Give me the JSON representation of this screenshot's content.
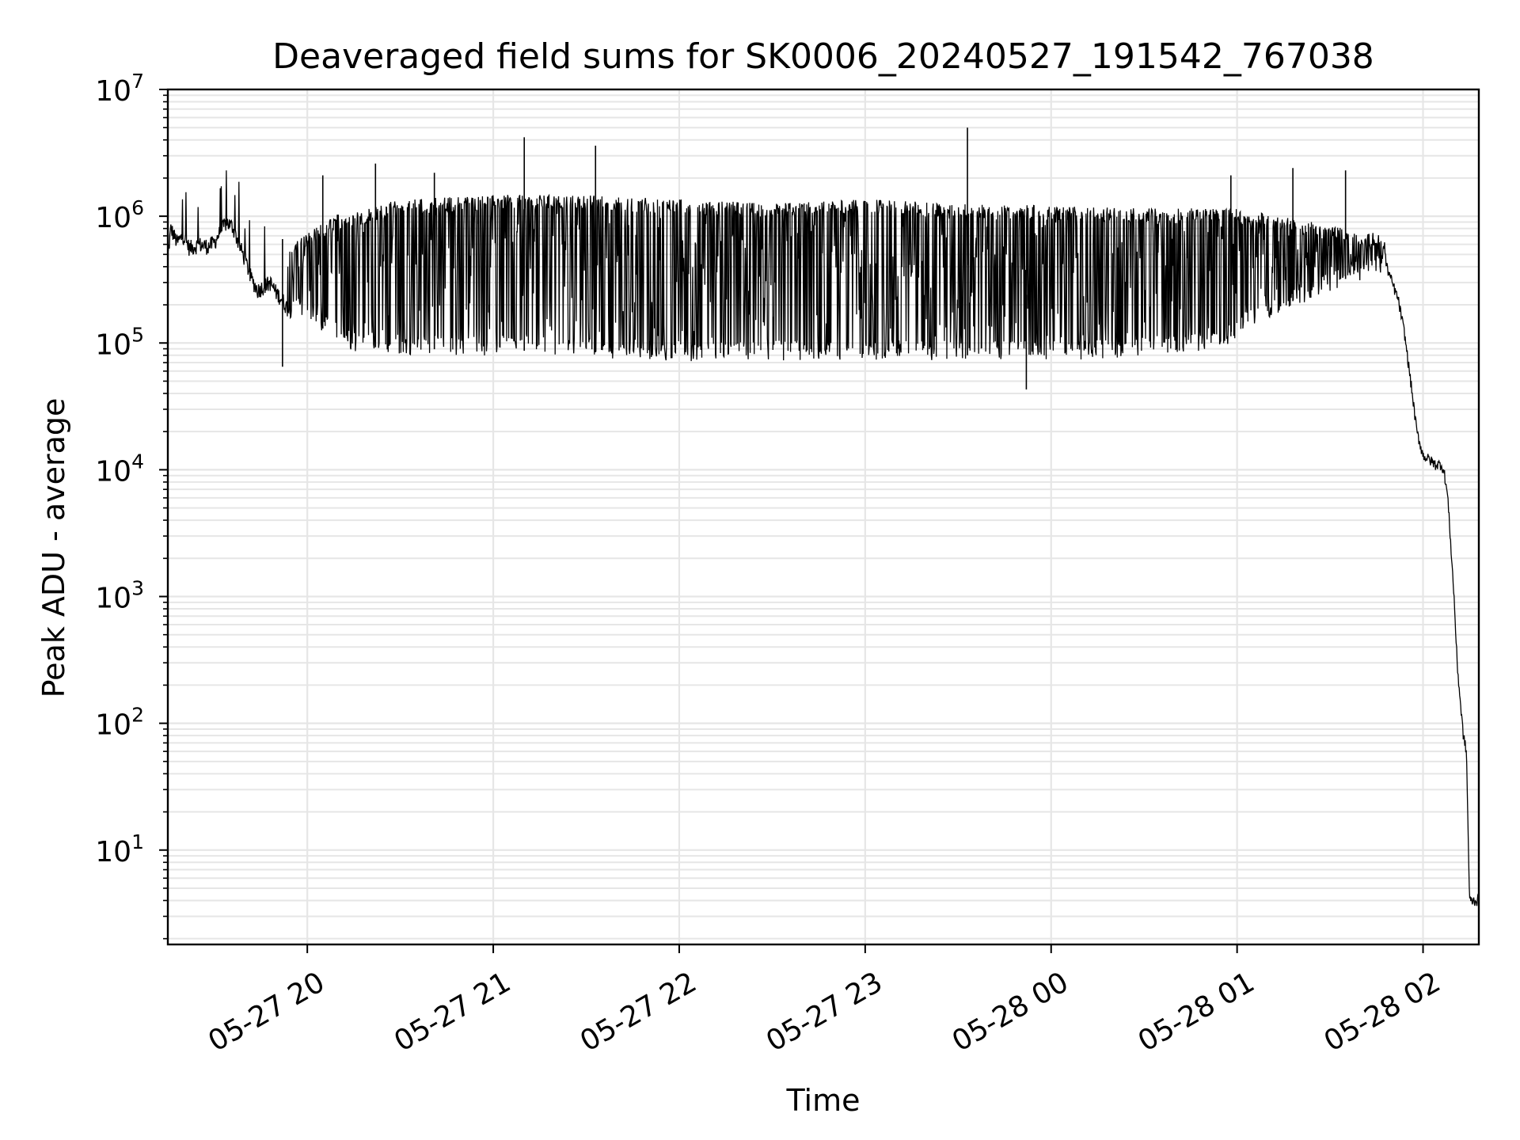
{
  "chart_data": {
    "type": "line",
    "title": "Deaveraged field sums for SK0006_20240527_191542_767038",
    "xlabel": "Time",
    "ylabel": "Peak ADU - average",
    "yscale": "log",
    "xlim": [
      "2024-05-27 19:15",
      "2024-05-28 02:18"
    ],
    "ylim": [
      1.8,
      10000000
    ],
    "grid": true,
    "line_color": "#000000",
    "grid_color": "#e6e6e6",
    "x_ticks": [
      {
        "t": "2024-05-27 20:00",
        "label": "05-27 20"
      },
      {
        "t": "2024-05-27 21:00",
        "label": "05-27 21"
      },
      {
        "t": "2024-05-27 22:00",
        "label": "05-27 22"
      },
      {
        "t": "2024-05-27 23:00",
        "label": "05-27 23"
      },
      {
        "t": "2024-05-28 00:00",
        "label": "05-28 00"
      },
      {
        "t": "2024-05-28 01:00",
        "label": "05-28 01"
      },
      {
        "t": "2024-05-28 02:00",
        "label": "05-28 02"
      }
    ],
    "y_ticks": [
      {
        "value": 10,
        "base": "10",
        "exp": "1"
      },
      {
        "value": 100,
        "base": "10",
        "exp": "2"
      },
      {
        "value": 1000,
        "base": "10",
        "exp": "3"
      },
      {
        "value": 10000,
        "base": "10",
        "exp": "4"
      },
      {
        "value": 100000,
        "base": "10",
        "exp": "5"
      },
      {
        "value": 1000000,
        "base": "10",
        "exp": "6"
      },
      {
        "value": 10000000,
        "base": "10",
        "exp": "7"
      }
    ],
    "series": [
      {
        "style": "baseline",
        "points": [
          [
            "2024-05-27 19:15",
            480000
          ],
          [
            "2024-05-27 19:16",
            800000
          ],
          [
            "2024-05-27 19:18",
            620000
          ],
          [
            "2024-05-27 19:20",
            700000
          ],
          [
            "2024-05-27 19:22",
            560000
          ],
          [
            "2024-05-27 19:25",
            600000
          ],
          [
            "2024-05-27 19:28",
            580000
          ],
          [
            "2024-05-27 19:30",
            620000
          ],
          [
            "2024-05-27 19:32",
            760000
          ],
          [
            "2024-05-27 19:34",
            900000
          ],
          [
            "2024-05-27 19:36",
            820000
          ],
          [
            "2024-05-27 19:38",
            600000
          ],
          [
            "2024-05-27 19:40",
            450000
          ],
          [
            "2024-05-27 19:42",
            320000
          ],
          [
            "2024-05-27 19:44",
            260000
          ],
          [
            "2024-05-27 19:46",
            280000
          ],
          [
            "2024-05-27 19:48",
            300000
          ],
          [
            "2024-05-27 19:50",
            250000
          ],
          [
            "2024-05-27 19:52",
            220000
          ],
          [
            "2024-05-27 19:54",
            180000
          ],
          [
            "2024-05-27 19:56",
            200000
          ],
          [
            "2024-05-27 19:58",
            170000
          ],
          [
            "2024-05-27 20:00",
            160000
          ],
          [
            "2024-05-27 20:05",
            130000
          ],
          [
            "2024-05-27 20:10",
            110000
          ],
          [
            "2024-05-27 20:15",
            95000
          ],
          [
            "2024-05-27 20:30",
            90000
          ],
          [
            "2024-05-27 21:00",
            88000
          ],
          [
            "2024-05-27 21:30",
            85000
          ],
          [
            "2024-05-27 22:00",
            80000
          ],
          [
            "2024-05-27 22:30",
            80000
          ],
          [
            "2024-05-27 23:00",
            82000
          ],
          [
            "2024-05-27 23:30",
            80000
          ],
          [
            "2024-05-28 00:00",
            80000
          ],
          [
            "2024-05-28 00:30",
            85000
          ],
          [
            "2024-05-28 00:55",
            100000
          ],
          [
            "2024-05-28 01:05",
            150000
          ],
          [
            "2024-05-28 01:15",
            200000
          ],
          [
            "2024-05-28 01:25",
            250000
          ],
          [
            "2024-05-28 01:35",
            320000
          ],
          [
            "2024-05-28 01:45",
            380000
          ],
          [
            "2024-05-28 01:48",
            420000
          ],
          [
            "2024-05-28 01:50",
            300000
          ],
          [
            "2024-05-28 01:52",
            220000
          ],
          [
            "2024-05-28 01:54",
            120000
          ],
          [
            "2024-05-28 01:56",
            50000
          ],
          [
            "2024-05-28 01:58",
            20000
          ],
          [
            "2024-05-28 02:00",
            13000
          ],
          [
            "2024-05-28 02:02",
            12000
          ],
          [
            "2024-05-28 02:04",
            11000
          ],
          [
            "2024-05-28 02:06",
            11000
          ],
          [
            "2024-05-28 02:07",
            9000
          ],
          [
            "2024-05-28 02:08",
            6000
          ],
          [
            "2024-05-28 02:10",
            1000
          ],
          [
            "2024-05-28 02:11",
            300
          ],
          [
            "2024-05-28 02:12",
            150
          ],
          [
            "2024-05-28 02:13",
            80
          ],
          [
            "2024-05-28 02:14",
            60
          ],
          [
            "2024-05-28 02:15",
            4
          ],
          [
            "2024-05-28 02:18",
            4
          ]
        ]
      },
      {
        "style": "upper_envelope",
        "points": [
          [
            "2024-05-27 19:15",
            600000
          ],
          [
            "2024-05-27 19:40",
            600000
          ],
          [
            "2024-05-27 19:50",
            500000
          ],
          [
            "2024-05-27 20:00",
            700000
          ],
          [
            "2024-05-27 20:10",
            1000000
          ],
          [
            "2024-05-27 20:20",
            1100000
          ],
          [
            "2024-05-27 20:30",
            1300000
          ],
          [
            "2024-05-27 21:00",
            1400000
          ],
          [
            "2024-05-27 21:30",
            1400000
          ],
          [
            "2024-05-27 22:00",
            1300000
          ],
          [
            "2024-05-27 22:30",
            1200000
          ],
          [
            "2024-05-27 23:00",
            1300000
          ],
          [
            "2024-05-27 23:30",
            1200000
          ],
          [
            "2024-05-28 00:00",
            1150000
          ],
          [
            "2024-05-28 00:30",
            1100000
          ],
          [
            "2024-05-28 01:00",
            1100000
          ],
          [
            "2024-05-28 01:15",
            950000
          ],
          [
            "2024-05-28 01:30",
            800000
          ],
          [
            "2024-05-28 01:45",
            700000
          ],
          [
            "2024-05-28 01:48",
            600000
          ]
        ]
      },
      {
        "style": "spikes",
        "points": [
          [
            "2024-05-27 19:52",
            65000
          ],
          [
            "2024-05-27 20:05",
            2100000
          ],
          [
            "2024-05-27 20:22",
            2600000
          ],
          [
            "2024-05-27 20:41",
            2200000
          ],
          [
            "2024-05-27 21:10",
            4200000
          ],
          [
            "2024-05-27 21:33",
            3600000
          ],
          [
            "2024-05-27 23:33",
            5000000
          ],
          [
            "2024-05-27 23:52",
            43000
          ],
          [
            "2024-05-28 00:58",
            2100000
          ],
          [
            "2024-05-28 01:18",
            2400000
          ],
          [
            "2024-05-28 01:35",
            2300000
          ]
        ]
      }
    ]
  }
}
